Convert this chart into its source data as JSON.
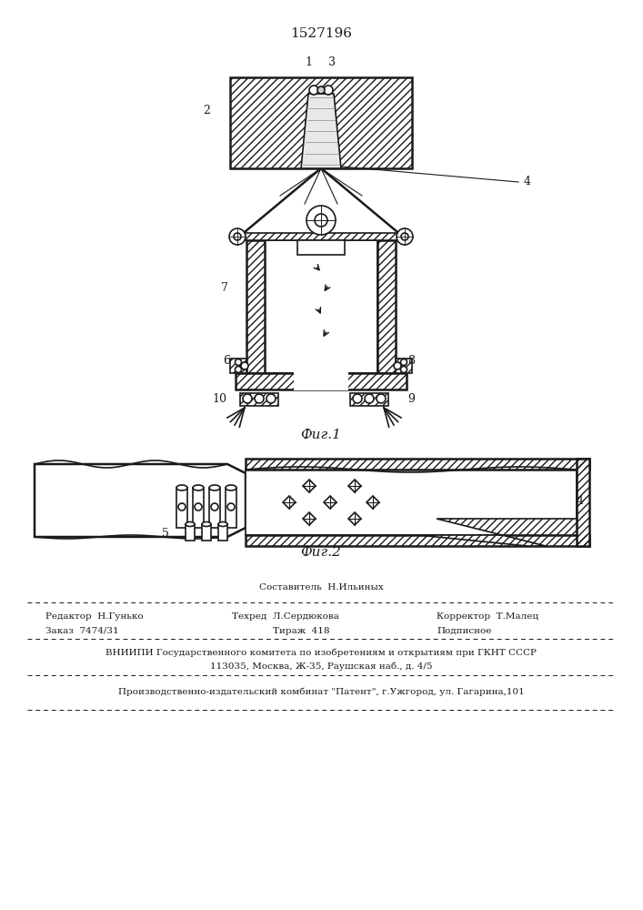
{
  "title": "1527196",
  "fig1_label": "Фиг.1",
  "fig2_label": "Фиг.2",
  "bg_color": "#ffffff",
  "line_color": "#1a1a1a",
  "footer_row1_center": "Составитель  Н.Ильиных",
  "footer_row2": [
    "Редактор  Н.Гунько",
    "Техред  Л.Сердюкова",
    "Корректор  Т.Малец"
  ],
  "footer_row3": [
    "Заказ  7474/31",
    "Тираж  418",
    "Подписное"
  ],
  "footer_row4": "ВНИИПИ Государственного комитета по изобретениям и открытиям при ГКНТ СССР",
  "footer_row5": "113035, Москва, Ж-35, Раушская наб., д. 4/5",
  "footer_row6": "Производственно-издательский комбинат \"Патент\", г.Ужгород, ул. Гагарина,101"
}
